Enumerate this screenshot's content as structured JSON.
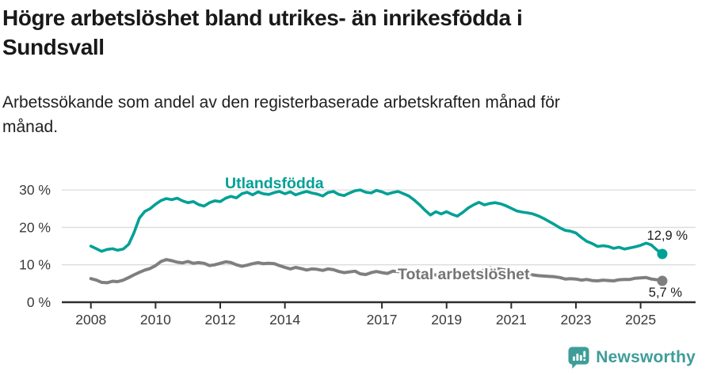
{
  "header": {
    "title_lines": [
      "Högre arbetslöshet bland utrikes- än inrikesfödda i",
      "Sundsvall"
    ],
    "subtitle_lines": [
      "Arbetssökande som andel av den registerbaserade arbetskraften månad för",
      "månad."
    ]
  },
  "footer": {
    "brand": "Newsworthy"
  },
  "colors": {
    "accent_teal": "#00a096",
    "gray_line": "#7f7f7f",
    "gray_label": "#757575",
    "grid": "#dcdcdc",
    "axis": "#2d2d2d",
    "tick_text": "#3a3a3a",
    "value_text": "#1a1a1a",
    "logo_teal": "#3e9d99"
  },
  "chart_data": {
    "type": "line",
    "title": "Högre arbetslöshet bland utrikes- än inrikesfödda i Sundsvall",
    "subtitle": "Arbetssökande som andel av den registerbaserade arbetskraften månad för månad.",
    "xlabel": "",
    "ylabel": "",
    "grid": "horizontal",
    "legend_position": "inline-labels",
    "xlim": [
      2007.1,
      2026.7
    ],
    "ylim": [
      0,
      33.2
    ],
    "x_ticks": [
      2008,
      2010,
      2012,
      2014,
      2017,
      2019,
      2021,
      2023,
      2025
    ],
    "y_ticks": [
      0,
      10,
      20,
      30
    ],
    "y_tick_suffix": " %",
    "series": [
      {
        "name": "Utlandsfödda",
        "color": "#00a096",
        "end_label": "12,9 %",
        "end_value": 12.9,
        "x": [
          2008.0,
          2008.17,
          2008.33,
          2008.5,
          2008.67,
          2008.83,
          2009.0,
          2009.17,
          2009.33,
          2009.5,
          2009.67,
          2009.83,
          2010.0,
          2010.17,
          2010.33,
          2010.5,
          2010.67,
          2010.83,
          2011.0,
          2011.17,
          2011.33,
          2011.5,
          2011.67,
          2011.83,
          2012.0,
          2012.17,
          2012.33,
          2012.5,
          2012.67,
          2012.83,
          2013.0,
          2013.17,
          2013.33,
          2013.5,
          2013.67,
          2013.83,
          2014.0,
          2014.17,
          2014.33,
          2014.5,
          2014.67,
          2014.83,
          2015.0,
          2015.17,
          2015.33,
          2015.5,
          2015.67,
          2015.83,
          2016.0,
          2016.17,
          2016.33,
          2016.5,
          2016.67,
          2016.83,
          2017.0,
          2017.17,
          2017.33,
          2017.5,
          2017.67,
          2017.83,
          2018.0,
          2018.17,
          2018.33,
          2018.5,
          2018.67,
          2018.83,
          2019.0,
          2019.17,
          2019.33,
          2019.5,
          2019.67,
          2019.83,
          2020.0,
          2020.17,
          2020.33,
          2020.5,
          2020.67,
          2020.83,
          2021.0,
          2021.17,
          2021.33,
          2021.5,
          2021.67,
          2021.83,
          2022.0,
          2022.17,
          2022.33,
          2022.5,
          2022.67,
          2022.83,
          2023.0,
          2023.17,
          2023.33,
          2023.5,
          2023.67,
          2023.83,
          2024.0,
          2024.17,
          2024.33,
          2024.5,
          2024.67,
          2024.83,
          2025.0,
          2025.17,
          2025.33,
          2025.5,
          2025.67
        ],
        "values": [
          15.0,
          14.3,
          13.6,
          14.1,
          14.3,
          13.9,
          14.2,
          15.5,
          18.5,
          22.5,
          24.3,
          25.0,
          26.2,
          27.2,
          27.7,
          27.4,
          27.8,
          27.1,
          26.6,
          26.9,
          26.1,
          25.7,
          26.6,
          27.1,
          26.9,
          27.8,
          28.3,
          27.9,
          29.0,
          29.4,
          28.7,
          29.5,
          29.0,
          28.8,
          29.3,
          29.6,
          29.0,
          29.5,
          28.7,
          29.2,
          29.6,
          29.2,
          28.9,
          28.4,
          29.3,
          29.6,
          28.8,
          28.5,
          29.2,
          29.8,
          30.0,
          29.4,
          29.2,
          29.9,
          29.5,
          28.9,
          29.3,
          29.6,
          29.0,
          28.4,
          27.3,
          26.0,
          24.6,
          23.3,
          24.2,
          23.6,
          24.2,
          23.5,
          23.0,
          24.0,
          25.2,
          26.0,
          26.7,
          26.0,
          26.4,
          26.6,
          26.3,
          25.8,
          25.1,
          24.4,
          24.1,
          23.9,
          23.6,
          23.1,
          22.4,
          21.6,
          20.8,
          19.9,
          19.2,
          19.0,
          18.5,
          17.3,
          16.3,
          15.7,
          14.9,
          15.1,
          14.9,
          14.4,
          14.7,
          14.2,
          14.5,
          14.8,
          15.2,
          15.8,
          15.3,
          14.0,
          12.9
        ]
      },
      {
        "name": "Total arbetslöshet",
        "color": "#7f7f7f",
        "end_label": "5,7 %",
        "end_value": 5.7,
        "x": [
          2008.0,
          2008.17,
          2008.33,
          2008.5,
          2008.67,
          2008.83,
          2009.0,
          2009.17,
          2009.33,
          2009.5,
          2009.67,
          2009.83,
          2010.0,
          2010.17,
          2010.33,
          2010.5,
          2010.67,
          2010.83,
          2011.0,
          2011.17,
          2011.33,
          2011.5,
          2011.67,
          2011.83,
          2012.0,
          2012.17,
          2012.33,
          2012.5,
          2012.67,
          2012.83,
          2013.0,
          2013.17,
          2013.33,
          2013.5,
          2013.67,
          2013.83,
          2014.0,
          2014.17,
          2014.33,
          2014.5,
          2014.67,
          2014.83,
          2015.0,
          2015.17,
          2015.33,
          2015.5,
          2015.67,
          2015.83,
          2016.0,
          2016.17,
          2016.33,
          2016.5,
          2016.67,
          2016.83,
          2017.0,
          2017.17,
          2017.33,
          2017.5,
          2017.67,
          2017.83,
          2018.0,
          2018.17,
          2018.33,
          2018.5,
          2018.67,
          2018.83,
          2019.0,
          2019.17,
          2019.33,
          2019.5,
          2019.67,
          2019.83,
          2020.0,
          2020.17,
          2020.33,
          2020.5,
          2020.67,
          2020.83,
          2021.0,
          2021.17,
          2021.33,
          2021.5,
          2021.67,
          2021.83,
          2022.0,
          2022.17,
          2022.33,
          2022.5,
          2022.67,
          2022.83,
          2023.0,
          2023.17,
          2023.33,
          2023.5,
          2023.67,
          2023.83,
          2024.0,
          2024.17,
          2024.33,
          2024.5,
          2024.67,
          2024.83,
          2025.0,
          2025.17,
          2025.33,
          2025.5,
          2025.67
        ],
        "values": [
          6.3,
          5.9,
          5.3,
          5.2,
          5.6,
          5.5,
          5.9,
          6.6,
          7.3,
          8.0,
          8.6,
          9.0,
          9.8,
          10.9,
          11.4,
          11.1,
          10.7,
          10.5,
          10.9,
          10.4,
          10.6,
          10.4,
          9.8,
          10.0,
          10.4,
          10.8,
          10.6,
          10.0,
          9.6,
          9.9,
          10.3,
          10.6,
          10.3,
          10.4,
          10.3,
          9.8,
          9.3,
          8.9,
          9.3,
          9.0,
          8.6,
          8.9,
          8.8,
          8.5,
          8.9,
          8.7,
          8.2,
          7.9,
          8.1,
          8.3,
          7.6,
          7.4,
          7.9,
          8.2,
          7.9,
          7.7,
          8.3,
          8.2,
          8.0,
          7.8,
          7.6,
          7.5,
          7.4,
          7.4,
          7.3,
          7.2,
          7.1,
          7.0,
          7.1,
          7.2,
          7.3,
          7.5,
          7.9,
          8.7,
          9.2,
          9.0,
          8.8,
          8.6,
          8.4,
          8.1,
          7.9,
          7.6,
          7.3,
          7.1,
          7.0,
          6.9,
          6.8,
          6.6,
          6.2,
          6.3,
          6.2,
          5.9,
          6.1,
          5.8,
          5.7,
          5.9,
          5.8,
          5.7,
          6.0,
          6.1,
          6.1,
          6.4,
          6.5,
          6.6,
          6.2,
          6.0,
          5.7
        ]
      }
    ]
  }
}
